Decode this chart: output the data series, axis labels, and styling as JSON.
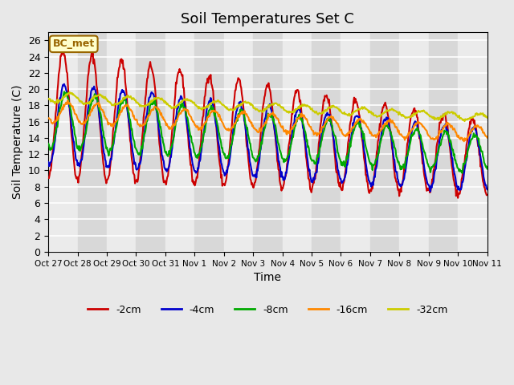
{
  "title": "Soil Temperatures Set C",
  "xlabel": "Time",
  "ylabel": "Soil Temperature (C)",
  "ylim": [
    0,
    27
  ],
  "yticks": [
    0,
    2,
    4,
    6,
    8,
    10,
    12,
    14,
    16,
    18,
    20,
    22,
    24,
    26
  ],
  "colors": {
    "-2cm": "#cc0000",
    "-4cm": "#0000cc",
    "-8cm": "#00aa00",
    "-16cm": "#ff8800",
    "-32cm": "#cccc00"
  },
  "legend_labels": [
    "-2cm",
    "-4cm",
    "-8cm",
    "-16cm",
    "-32cm"
  ],
  "xtick_labels": [
    "Oct 27",
    "Oct 28",
    "Oct 29",
    "Oct 30",
    "Oct 31",
    "Nov 1",
    "Nov 2",
    "Nov 3",
    "Nov 4",
    "Nov 5",
    "Nov 6",
    "Nov 7",
    "Nov 8",
    "Nov 9",
    "Nov 10",
    "Nov 11"
  ],
  "annotation_text": "BC_met",
  "annotation_bg": "#ffffcc",
  "annotation_border": "#996600",
  "bg_color": "#e8e8e8",
  "plot_bg": "#f5f5f5",
  "linewidth": 1.5,
  "n_days": 15,
  "pts_per_day": 48
}
